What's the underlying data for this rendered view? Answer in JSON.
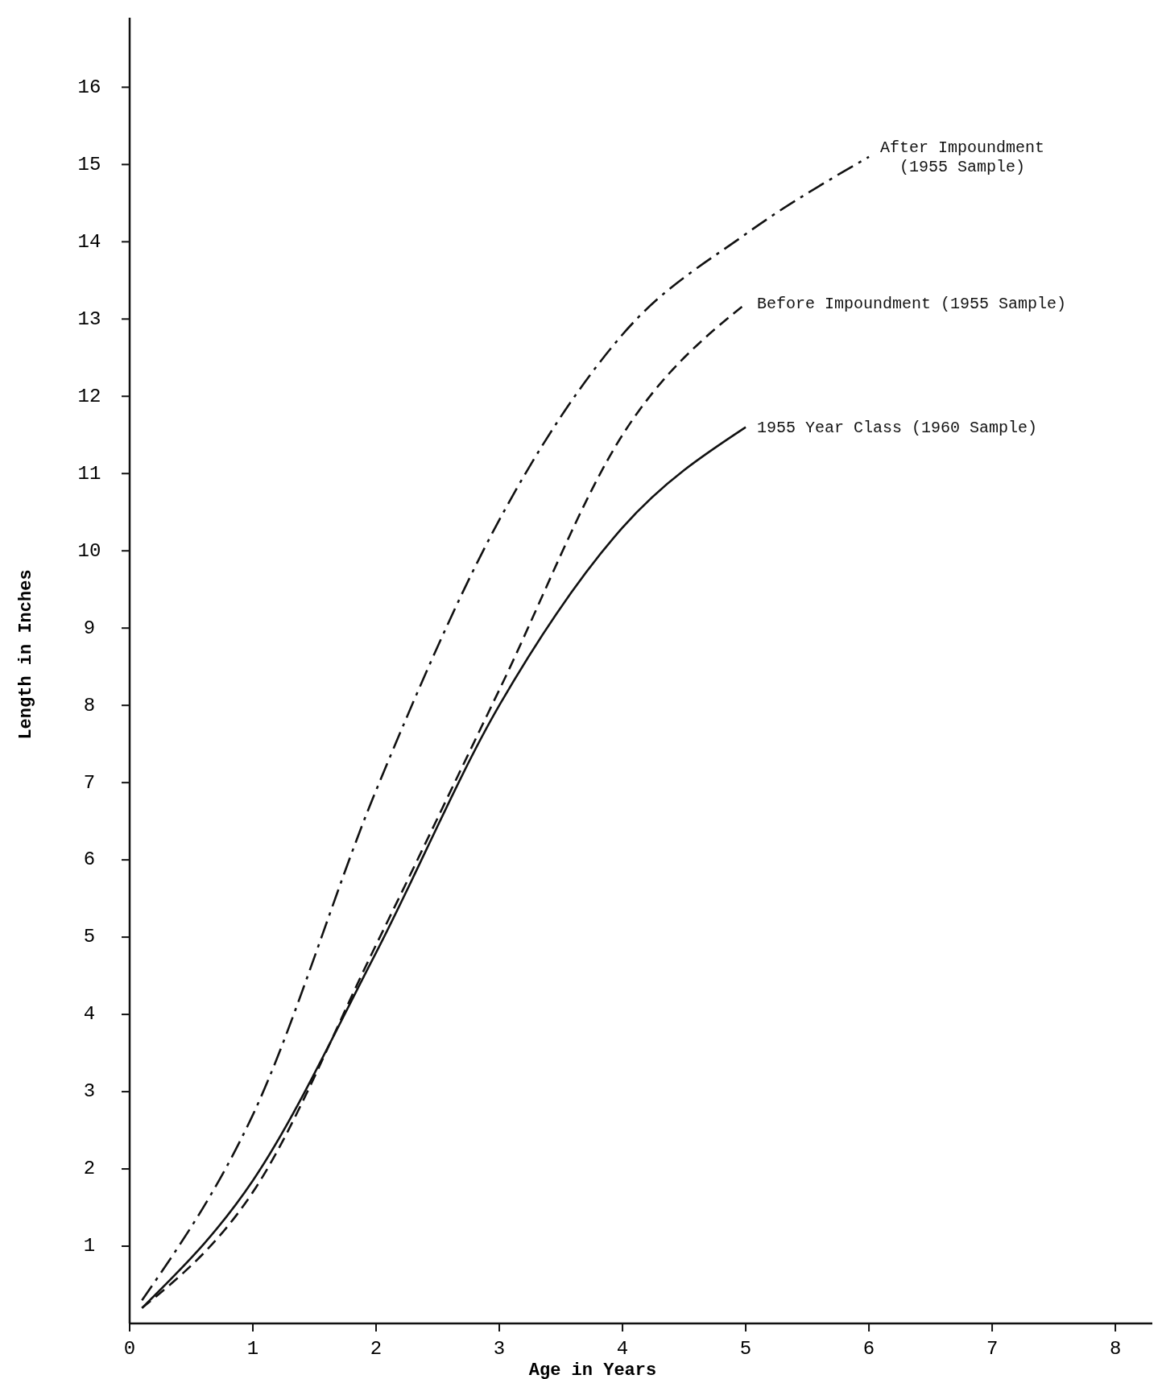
{
  "chart_data": {
    "type": "line",
    "xlabel": "Age in Years",
    "ylabel": "Length in Inches",
    "xlim": [
      0,
      8.3
    ],
    "ylim": [
      0,
      16.9
    ],
    "xticks": [
      0,
      1,
      2,
      3,
      4,
      5,
      6,
      7,
      8
    ],
    "yticks": [
      1,
      2,
      3,
      4,
      5,
      6,
      7,
      8,
      9,
      10,
      11,
      12,
      13,
      14,
      15,
      16
    ],
    "grid": false,
    "legend": false,
    "marker": "none",
    "series": [
      {
        "name": "After Impoundment (1955 Sample)",
        "color": "#111111",
        "line_style": "dashdot",
        "x": [
          0.1,
          1,
          2,
          3,
          4,
          5,
          6
        ],
        "values": [
          0.3,
          2.7,
          6.9,
          10.4,
          12.8,
          14.1,
          15.1
        ]
      },
      {
        "name": "Before Impoundment (1955 Sample)",
        "color": "#111111",
        "line_style": "dashed",
        "x": [
          0.1,
          1,
          2,
          3,
          4,
          5
        ],
        "values": [
          0.2,
          1.7,
          4.9,
          8.2,
          11.5,
          13.2
        ]
      },
      {
        "name": "1955 Year Class (1960 Sample)",
        "color": "#111111",
        "line_style": "solid",
        "x": [
          0.1,
          1,
          2,
          3,
          4,
          5
        ],
        "values": [
          0.2,
          1.85,
          4.8,
          8.0,
          10.3,
          11.6
        ]
      }
    ]
  }
}
